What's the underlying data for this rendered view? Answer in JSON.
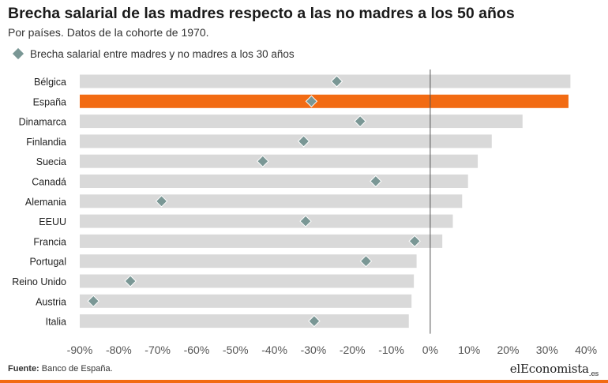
{
  "header": {
    "title": "Brecha salarial de las madres respecto a las no madres a los 50 años",
    "subtitle": "Por países. Datos de la cohorte de 1970."
  },
  "legend": {
    "label": "Brecha salarial entre madres y no madres a los 30 años"
  },
  "colors": {
    "bar": "#d9d9d9",
    "highlight": "#f26b13",
    "marker": "#7a9795",
    "zero_line": "#555555",
    "axis_text": "#555555"
  },
  "chart_data": {
    "type": "bar",
    "orientation": "horizontal",
    "categories": [
      "Bélgica",
      "España",
      "Dinamarca",
      "Finlandia",
      "Suecia",
      "Canadá",
      "Alemania",
      "EEUU",
      "Francia",
      "Portugal",
      "Reino Unido",
      "Austria",
      "Italia"
    ],
    "series": [
      {
        "values": [
          36,
          35.5,
          23.7,
          15.8,
          12.2,
          9.7,
          8.2,
          5.8,
          3.1,
          -3.5,
          -4.2,
          -4.8,
          -5.5
        ]
      },
      {
        "name": "Brecha salarial entre madres y no madres a los 30 años",
        "values": [
          -24,
          -30.5,
          -18,
          -32.5,
          -43,
          -14,
          -69,
          -32,
          -4,
          -16.5,
          -77,
          -86.5,
          -29.8
        ]
      }
    ],
    "highlight_category": "España",
    "xlim": [
      -90,
      42
    ],
    "xticks": [
      -90,
      -80,
      -70,
      -60,
      -50,
      -40,
      -30,
      -20,
      -10,
      0,
      10,
      20,
      30,
      40
    ],
    "tick_format": "percent"
  },
  "footer": {
    "source_label": "Fuente:",
    "source_text": "Banco de España.",
    "brand": "elEconomista",
    "brand_suffix": ".es"
  }
}
